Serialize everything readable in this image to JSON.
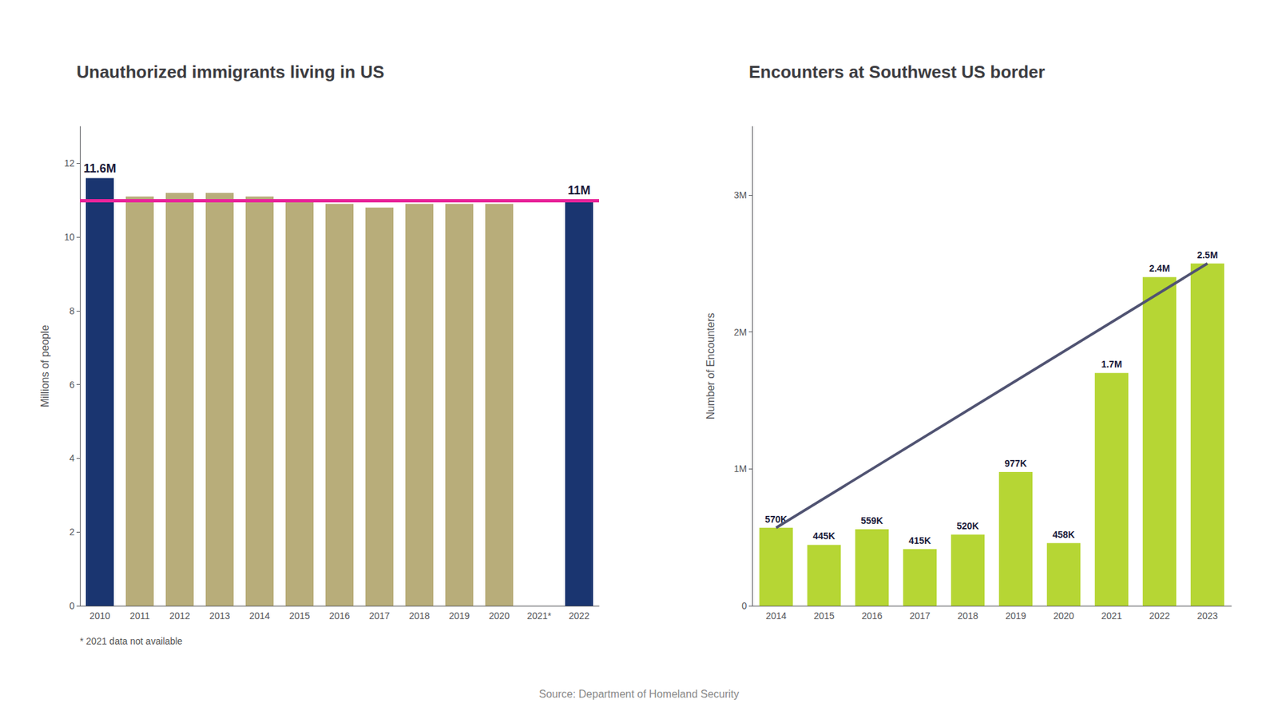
{
  "chart_data": [
    {
      "type": "bar",
      "title": "Unauthorized immigrants living in US",
      "categories": [
        "2010",
        "2011",
        "2012",
        "2013",
        "2014",
        "2015",
        "2016",
        "2017",
        "2018",
        "2019",
        "2020",
        "2021*",
        "2022"
      ],
      "values": [
        11.6,
        11.1,
        11.2,
        11.2,
        11.1,
        11.0,
        10.9,
        10.8,
        10.9,
        10.9,
        10.9,
        0,
        11.0
      ],
      "colors": [
        "#1a3570",
        "#b8ad7a",
        "#b8ad7a",
        "#b8ad7a",
        "#b8ad7a",
        "#b8ad7a",
        "#b8ad7a",
        "#b8ad7a",
        "#b8ad7a",
        "#b8ad7a",
        "#b8ad7a",
        "#b8ad7a",
        "#1a3570"
      ],
      "value_labels": [
        "11.6M",
        null,
        null,
        null,
        null,
        null,
        null,
        null,
        null,
        null,
        null,
        null,
        "11M"
      ],
      "ylabel": "Millions of people",
      "ylim": [
        0,
        13
      ],
      "yticks": [
        0,
        2,
        4,
        6,
        8,
        10,
        12
      ],
      "grid": false,
      "reference_line": {
        "y": 11.0,
        "color": "#e8259a"
      },
      "note": "* 2021 data not available"
    },
    {
      "type": "bar",
      "title": "Encounters at Southwest US border",
      "categories": [
        "2014",
        "2015",
        "2016",
        "2017",
        "2018",
        "2019",
        "2020",
        "2021",
        "2022",
        "2023"
      ],
      "values": [
        570000,
        445000,
        559000,
        415000,
        520000,
        977000,
        458000,
        1700000,
        2400000,
        2500000
      ],
      "value_labels": [
        "570K",
        "445K",
        "559K",
        "415K",
        "520K",
        "977K",
        "458K",
        "1.7M",
        "2.4M",
        "2.5M"
      ],
      "ylabel": "Number of Encounters",
      "ylim": [
        0,
        3500000
      ],
      "yticks": [
        0,
        {
          "value": 1000000,
          "label": "1M"
        },
        {
          "value": 2000000,
          "label": "2M"
        },
        {
          "value": 3000000,
          "label": "3M"
        }
      ],
      "grid": false,
      "trend_line": {
        "x": [
          "2014",
          "2023"
        ],
        "y": [
          570000,
          2500000
        ]
      }
    }
  ],
  "source": "Source: Department of Homeland Security"
}
